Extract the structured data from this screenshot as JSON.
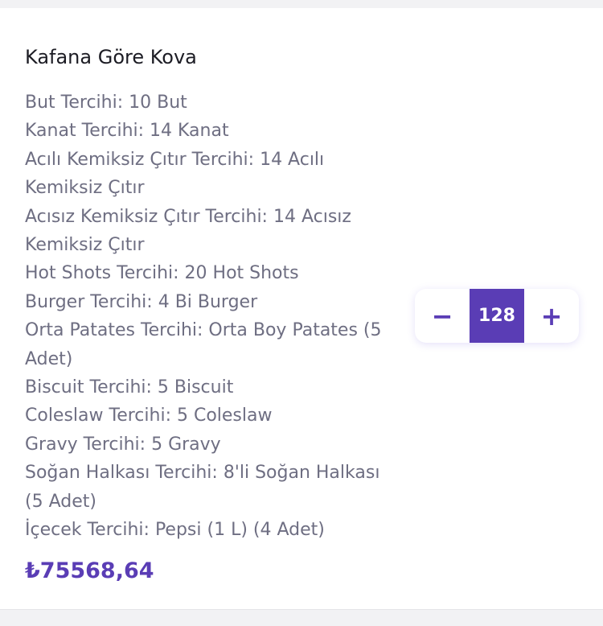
{
  "product": {
    "title": "Kafana Göre Kova",
    "options": [
      "But Tercihi: 10 But",
      "Kanat Tercihi: 14 Kanat",
      "Acılı Kemiksiz Çıtır Tercihi: 14 Acılı Kemiksiz Çıtır",
      "Acısız Kemiksiz Çıtır Tercihi: 14 Acısız Kemiksiz Çıtır",
      "Hot Shots Tercihi: 20 Hot Shots",
      "Burger Tercihi: 4 Bi Burger",
      "Orta Patates Tercihi: Orta Boy Patates (5 Adet)",
      "Biscuit Tercihi: 5 Biscuit",
      "Coleslaw Tercihi: 5 Coleslaw",
      "Gravy Tercihi: 5 Gravy",
      "Soğan Halkası Tercihi: 8'li Soğan Halkası (5 Adet)",
      "İçecek Tercihi: Pepsi (1 L) (4 Adet)"
    ],
    "price": "₺75568,64"
  },
  "stepper": {
    "decrement_label": "−",
    "quantity": "128",
    "increment_label": "+"
  },
  "colors": {
    "accent": "#5a3db5",
    "text": "#6e6e82"
  }
}
